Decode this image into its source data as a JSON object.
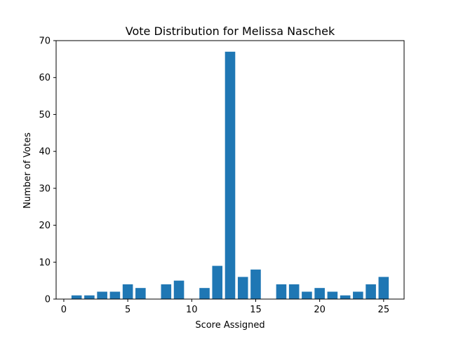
{
  "chart_data": {
    "type": "bar",
    "title": "Vote Distribution for Melissa Naschek",
    "xlabel": "Score Assigned",
    "ylabel": "Number of Votes",
    "x": [
      1,
      2,
      3,
      4,
      5,
      6,
      7,
      8,
      9,
      10,
      11,
      12,
      13,
      14,
      15,
      16,
      17,
      18,
      19,
      20,
      21,
      22,
      23,
      24,
      25
    ],
    "values": [
      1,
      1,
      2,
      2,
      4,
      3,
      0,
      4,
      5,
      0,
      3,
      9,
      67,
      6,
      8,
      0,
      4,
      4,
      2,
      3,
      2,
      1,
      2,
      4,
      6
    ],
    "xlim": [
      -0.6,
      26.6
    ],
    "ylim": [
      0,
      70
    ],
    "xticks": [
      0,
      5,
      10,
      15,
      20,
      25
    ],
    "yticks": [
      0,
      10,
      20,
      30,
      40,
      50,
      60,
      70
    ],
    "bar_color": "#1f77b4",
    "grid": false,
    "legend": "none"
  }
}
